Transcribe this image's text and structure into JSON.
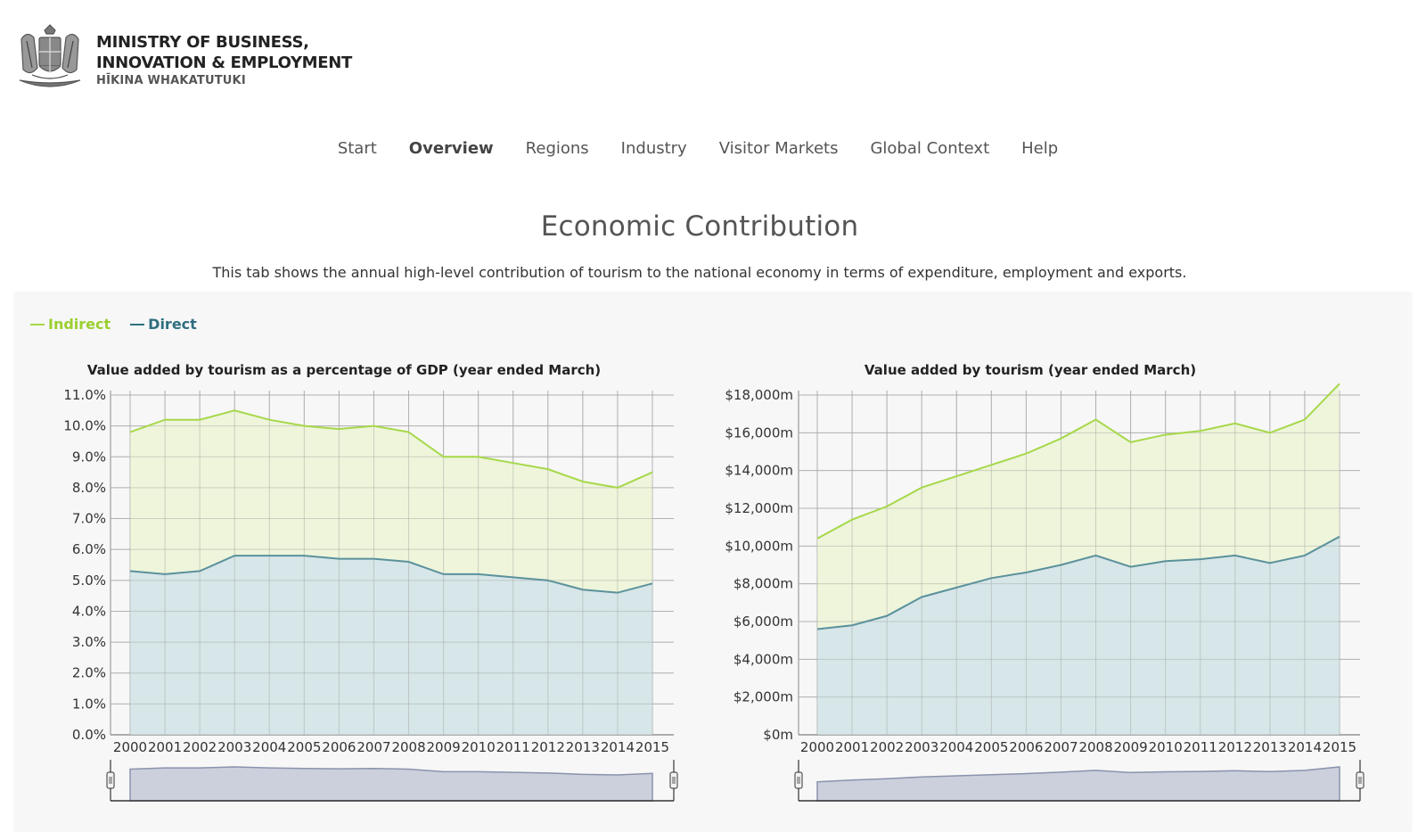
{
  "header": {
    "org_line1": "MINISTRY OF BUSINESS,",
    "org_line2": "INNOVATION & EMPLOYMENT",
    "org_sub": "HĪKINA WHAKATUTUKI",
    "crest_icon": "nz-coat-of-arms-icon"
  },
  "nav": {
    "items": [
      "Start",
      "Overview",
      "Regions",
      "Industry",
      "Visitor Markets",
      "Global Context",
      "Help"
    ],
    "active": "Overview"
  },
  "page": {
    "title": "Economic Contribution",
    "description": "This tab shows the annual high-level contribution of tourism to the national economy in terms of expenditure, employment and exports."
  },
  "legend": {
    "indirect": "Indirect",
    "direct": "Direct",
    "indirect_color": "#a6d84a",
    "direct_color": "#4a8a96"
  },
  "colors": {
    "indirect_line": "#a6d84a",
    "indirect_fill": "#ecf5d6",
    "direct_line": "#5b919c",
    "direct_fill": "#d3e3e6",
    "grid": "#bdbdbd",
    "navigator_fill": "#aab1c7",
    "navigator_line": "#8a93ad"
  },
  "chart_data": [
    {
      "type": "area",
      "title": "Value added by tourism as a percentage of GDP (year ended March)",
      "x": [
        "2000",
        "2001",
        "2002",
        "2003",
        "2004",
        "2005",
        "2006",
        "2007",
        "2008",
        "2009",
        "2010",
        "2011",
        "2012",
        "2013",
        "2014",
        "2015"
      ],
      "ylim": [
        0,
        11
      ],
      "yticks": [
        0,
        1,
        2,
        3,
        4,
        5,
        6,
        7,
        8,
        9,
        10,
        11
      ],
      "ytick_labels": [
        "0.0%",
        "1.0%",
        "2.0%",
        "3.0%",
        "4.0%",
        "5.0%",
        "6.0%",
        "7.0%",
        "8.0%",
        "9.0%",
        "10.0%",
        "11.0%"
      ],
      "series": [
        {
          "name": "Indirect",
          "values": [
            9.8,
            10.2,
            10.2,
            10.5,
            10.2,
            10.0,
            9.9,
            10.0,
            9.8,
            9.0,
            9.0,
            8.8,
            8.6,
            8.2,
            8.0,
            8.5
          ]
        },
        {
          "name": "Direct",
          "values": [
            5.3,
            5.2,
            5.3,
            5.8,
            5.8,
            5.8,
            5.7,
            5.7,
            5.6,
            5.2,
            5.2,
            5.1,
            5.0,
            4.7,
            4.6,
            4.9
          ]
        }
      ],
      "grid": true
    },
    {
      "type": "area",
      "title": "Value added by tourism (year ended March)",
      "x": [
        "2000",
        "2001",
        "2002",
        "2003",
        "2004",
        "2005",
        "2006",
        "2007",
        "2008",
        "2009",
        "2010",
        "2011",
        "2012",
        "2013",
        "2014",
        "2015"
      ],
      "ylim": [
        0,
        18000
      ],
      "yticks": [
        0,
        2000,
        4000,
        6000,
        8000,
        10000,
        12000,
        14000,
        16000,
        18000
      ],
      "ytick_labels": [
        "$0m",
        "$2,000m",
        "$4,000m",
        "$6,000m",
        "$8,000m",
        "$10,000m",
        "$12,000m",
        "$14,000m",
        "$16,000m",
        "$18,000m"
      ],
      "series": [
        {
          "name": "Indirect",
          "values": [
            10400,
            11400,
            12100,
            13100,
            13700,
            14300,
            14900,
            15700,
            16700,
            15500,
            15900,
            16100,
            16500,
            16000,
            16700,
            18600
          ]
        },
        {
          "name": "Direct",
          "values": [
            5600,
            5800,
            6300,
            7300,
            7800,
            8300,
            8600,
            9000,
            9500,
            8900,
            9200,
            9300,
            9500,
            9100,
            9500,
            10500
          ]
        }
      ],
      "grid": true
    }
  ]
}
